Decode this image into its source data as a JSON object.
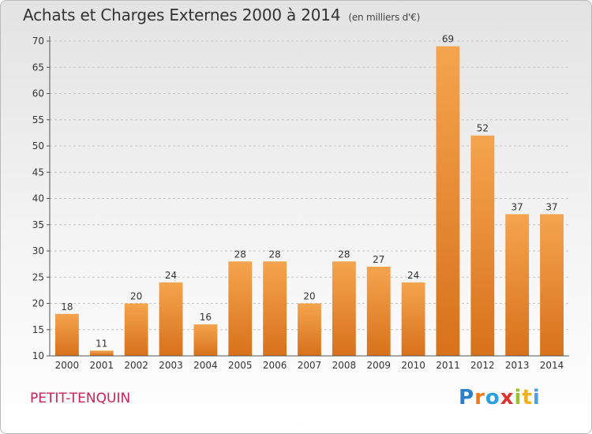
{
  "title": "Achats et Charges Externes 2000 à 2014",
  "unit": "(en milliers d'€)",
  "commune": "PETIT-TENQUIN",
  "logo": {
    "letters": [
      "P",
      "r",
      "o",
      "x",
      "i",
      "t",
      "i"
    ],
    "colors": [
      "#2a7fd0",
      "#f07a1a",
      "#2aa0e0",
      "#e03030",
      "#9bc12f",
      "#f0b020",
      "#4aa0e0"
    ]
  },
  "chart_data": {
    "type": "bar",
    "title": "Achats et Charges Externes 2000 à 2014",
    "categories": [
      "2000",
      "2001",
      "2002",
      "2003",
      "2004",
      "2005",
      "2006",
      "2007",
      "2008",
      "2009",
      "2010",
      "2011",
      "2012",
      "2013",
      "2014"
    ],
    "values": [
      18,
      11,
      20,
      24,
      16,
      28,
      28,
      20,
      28,
      27,
      24,
      69,
      52,
      37,
      37
    ],
    "ylim": [
      10,
      70
    ],
    "yticks": [
      10,
      15,
      20,
      25,
      30,
      35,
      40,
      45,
      50,
      55,
      60,
      65,
      70
    ],
    "grid": true,
    "bar_color": "#f0902a"
  }
}
